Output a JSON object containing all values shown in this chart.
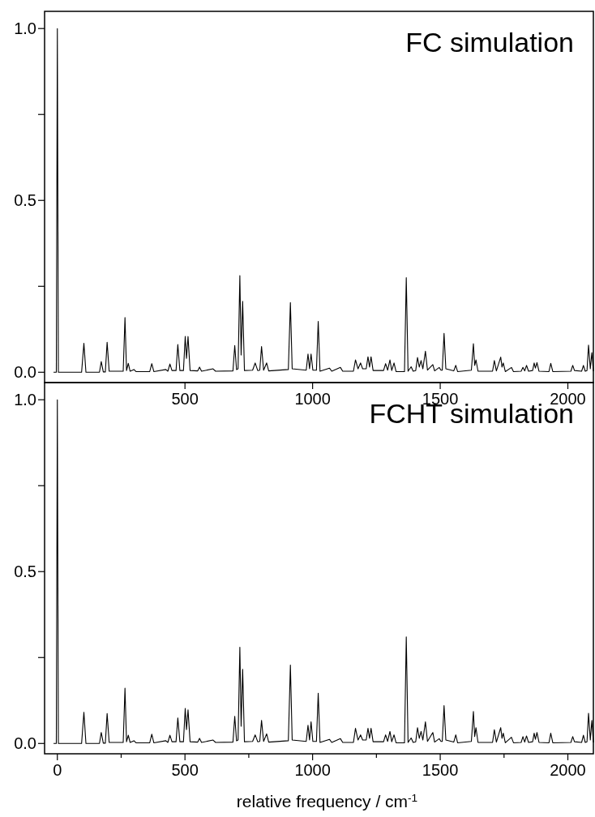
{
  "chart_data": [
    {
      "type": "line",
      "title": "FC simulation",
      "xlim": [
        -50,
        2100
      ],
      "ylim": [
        -0.03,
        1.05
      ],
      "xticks": [
        500,
        1000,
        1500,
        2000
      ],
      "yticks": [
        {
          "value": 0,
          "label": "0.0"
        },
        {
          "value": 0.25,
          "label": null
        },
        {
          "value": 0.5,
          "label": "0.5"
        },
        {
          "value": 0.75,
          "label": null
        },
        {
          "value": 1,
          "label": "1.0"
        }
      ],
      "x": [
        -15,
        -4,
        0,
        4,
        95,
        104,
        112,
        165,
        172,
        180,
        188,
        195,
        203,
        258,
        265,
        271,
        278,
        285,
        300,
        308,
        362,
        370,
        378,
        425,
        433,
        441,
        449,
        465,
        472,
        480,
        494,
        501,
        506,
        512,
        520,
        550,
        557,
        565,
        610,
        620,
        688,
        695,
        702,
        708,
        715,
        720,
        726,
        733,
        765,
        775,
        785,
        793,
        800,
        808,
        820,
        828,
        905,
        913,
        920,
        975,
        982,
        988,
        994,
        1001,
        1015,
        1022,
        1029,
        1066,
        1075,
        1109,
        1118,
        1160,
        1168,
        1178,
        1188,
        1196,
        1210,
        1217,
        1223,
        1229,
        1237,
        1278,
        1286,
        1294,
        1303,
        1310,
        1319,
        1327,
        1360,
        1367,
        1374,
        1386,
        1394,
        1404,
        1411,
        1418,
        1425,
        1432,
        1442,
        1450,
        1471,
        1478,
        1496,
        1503,
        1508,
        1515,
        1522,
        1553,
        1561,
        1568,
        1622,
        1630,
        1635,
        1640,
        1648,
        1705,
        1712,
        1720,
        1737,
        1742,
        1747,
        1755,
        1779,
        1787,
        1817,
        1824,
        1831,
        1838,
        1846,
        1862,
        1868,
        1873,
        1879,
        1887,
        1926,
        1933,
        1941,
        2012,
        2019,
        2026,
        2054,
        2061,
        2068,
        2075,
        2081,
        2088,
        2094,
        2100
      ],
      "series": [
        {
          "color": "#000000",
          "values": [
            0,
            0,
            1.0,
            0,
            0,
            0.084,
            0,
            0,
            0.031,
            0.001,
            0.001,
            0.087,
            0.003,
            0.003,
            0.159,
            0.005,
            0.026,
            0.003,
            0.008,
            0.002,
            0.002,
            0.025,
            0.002,
            0.008,
            0.003,
            0.024,
            0.005,
            0.005,
            0.081,
            0.005,
            0.005,
            0.104,
            0.04,
            0.104,
            0.005,
            0.004,
            0.015,
            0.003,
            0.01,
            0.003,
            0.004,
            0.078,
            0.008,
            0.01,
            0.281,
            0.05,
            0.206,
            0.005,
            0.006,
            0.027,
            0.005,
            0.006,
            0.075,
            0.006,
            0.027,
            0.004,
            0.008,
            0.203,
            0.01,
            0.006,
            0.053,
            0.01,
            0.053,
            0.006,
            0.006,
            0.148,
            0.003,
            0.012,
            0.003,
            0.014,
            0.003,
            0.003,
            0.036,
            0.01,
            0.027,
            0.01,
            0.01,
            0.045,
            0.015,
            0.045,
            0.005,
            0.005,
            0.025,
            0.006,
            0.036,
            0.005,
            0.027,
            0.002,
            0.002,
            0.275,
            0.003,
            0.016,
            0.003,
            0.005,
            0.043,
            0.015,
            0.034,
            0.01,
            0.061,
            0.006,
            0.022,
            0.004,
            0.014,
            0.006,
            0.006,
            0.113,
            0.01,
            0.004,
            0.02,
            0.002,
            0.006,
            0.083,
            0.02,
            0.036,
            0.003,
            0.003,
            0.034,
            0.004,
            0.044,
            0.015,
            0.027,
            0.002,
            0.014,
            0.002,
            0.003,
            0.014,
            0.004,
            0.02,
            0.003,
            0.005,
            0.027,
            0.012,
            0.028,
            0.003,
            0.002,
            0.026,
            0.002,
            0.003,
            0.02,
            0.005,
            0.003,
            0.02,
            0.003,
            0.005,
            0.079,
            0.01,
            0.057,
            0.003
          ]
        }
      ]
    },
    {
      "type": "line",
      "title": "FCHT simulation",
      "xlabel": "relative frequency / cm$^{-1}$",
      "xlim": [
        -50,
        2100
      ],
      "ylim": [
        -0.03,
        1.05
      ],
      "xticks": [
        0,
        {
          "value": 250,
          "label": null
        },
        500,
        {
          "value": 750,
          "label": null
        },
        1000,
        {
          "value": 1250,
          "label": null
        },
        1500,
        {
          "value": 1750,
          "label": null
        },
        2000
      ],
      "yticks": [
        {
          "value": 0,
          "label": "0.0"
        },
        {
          "value": 0.25,
          "label": null
        },
        {
          "value": 0.5,
          "label": "0.5"
        },
        {
          "value": 0.75,
          "label": null
        },
        {
          "value": 1,
          "label": "1.0"
        }
      ],
      "x": [
        -15,
        -4,
        0,
        4,
        95,
        104,
        112,
        165,
        172,
        180,
        188,
        195,
        203,
        258,
        265,
        271,
        278,
        285,
        300,
        308,
        362,
        370,
        378,
        425,
        433,
        441,
        449,
        465,
        472,
        480,
        494,
        501,
        506,
        512,
        520,
        550,
        557,
        565,
        610,
        620,
        688,
        695,
        702,
        708,
        715,
        720,
        726,
        733,
        765,
        775,
        785,
        793,
        800,
        808,
        820,
        828,
        905,
        913,
        920,
        975,
        982,
        988,
        994,
        1001,
        1015,
        1022,
        1029,
        1066,
        1075,
        1109,
        1118,
        1160,
        1168,
        1178,
        1188,
        1196,
        1210,
        1217,
        1223,
        1229,
        1237,
        1278,
        1286,
        1294,
        1303,
        1310,
        1319,
        1327,
        1360,
        1367,
        1374,
        1386,
        1394,
        1404,
        1411,
        1418,
        1425,
        1432,
        1442,
        1450,
        1471,
        1478,
        1496,
        1503,
        1508,
        1515,
        1522,
        1553,
        1561,
        1568,
        1622,
        1630,
        1635,
        1640,
        1648,
        1705,
        1712,
        1720,
        1737,
        1742,
        1747,
        1755,
        1779,
        1787,
        1817,
        1824,
        1831,
        1838,
        1846,
        1862,
        1868,
        1873,
        1879,
        1887,
        1926,
        1933,
        1941,
        2012,
        2019,
        2026,
        2054,
        2061,
        2068,
        2075,
        2081,
        2088,
        2094,
        2100
      ],
      "series": [
        {
          "color": "#000000",
          "values": [
            0,
            0,
            1.0,
            0,
            0,
            0.091,
            0,
            0,
            0.032,
            0.001,
            0.001,
            0.087,
            0.003,
            0.003,
            0.161,
            0.005,
            0.024,
            0.003,
            0.008,
            0.002,
            0.002,
            0.027,
            0.002,
            0.008,
            0.003,
            0.024,
            0.005,
            0.005,
            0.074,
            0.005,
            0.005,
            0.102,
            0.04,
            0.098,
            0.005,
            0.004,
            0.015,
            0.003,
            0.01,
            0.003,
            0.004,
            0.079,
            0.008,
            0.01,
            0.28,
            0.05,
            0.216,
            0.005,
            0.006,
            0.025,
            0.005,
            0.006,
            0.067,
            0.006,
            0.028,
            0.004,
            0.008,
            0.228,
            0.01,
            0.006,
            0.053,
            0.01,
            0.063,
            0.006,
            0.006,
            0.146,
            0.003,
            0.012,
            0.003,
            0.014,
            0.003,
            0.003,
            0.044,
            0.01,
            0.025,
            0.01,
            0.01,
            0.044,
            0.015,
            0.044,
            0.005,
            0.005,
            0.025,
            0.006,
            0.035,
            0.005,
            0.025,
            0.002,
            0.002,
            0.31,
            0.003,
            0.016,
            0.003,
            0.005,
            0.046,
            0.015,
            0.035,
            0.01,
            0.063,
            0.006,
            0.032,
            0.004,
            0.014,
            0.006,
            0.006,
            0.11,
            0.01,
            0.004,
            0.025,
            0.002,
            0.006,
            0.093,
            0.02,
            0.046,
            0.003,
            0.003,
            0.04,
            0.004,
            0.046,
            0.015,
            0.03,
            0.002,
            0.018,
            0.002,
            0.003,
            0.02,
            0.004,
            0.022,
            0.003,
            0.005,
            0.03,
            0.012,
            0.032,
            0.003,
            0.002,
            0.03,
            0.002,
            0.003,
            0.02,
            0.005,
            0.003,
            0.024,
            0.003,
            0.005,
            0.088,
            0.01,
            0.067,
            0.003
          ]
        }
      ]
    }
  ]
}
